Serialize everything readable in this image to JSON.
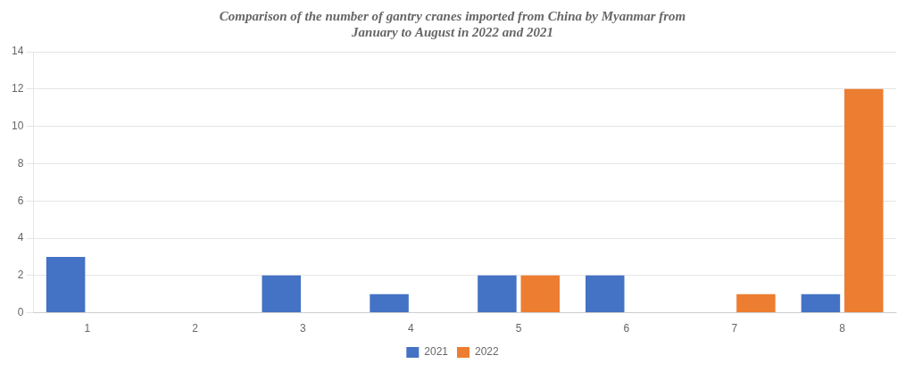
{
  "chart_data": {
    "type": "bar",
    "title": "Comparison of the number of gantry cranes imported from China by Myanmar from\nJanuary to August in 2022 and 2021",
    "categories": [
      1,
      2,
      3,
      4,
      5,
      6,
      7,
      8
    ],
    "series": [
      {
        "name": "2021",
        "color": "#4472C4",
        "values": [
          3,
          0,
          2,
          1,
          2,
          2,
          0,
          1
        ]
      },
      {
        "name": "2022",
        "color": "#ED7D31",
        "values": [
          0,
          0,
          0,
          0,
          2,
          0,
          1,
          12
        ]
      }
    ],
    "ylim": [
      0,
      14
    ],
    "yticks": [
      0,
      2,
      4,
      6,
      8,
      10,
      12,
      14
    ],
    "grid": "y",
    "legend": "bottom"
  }
}
